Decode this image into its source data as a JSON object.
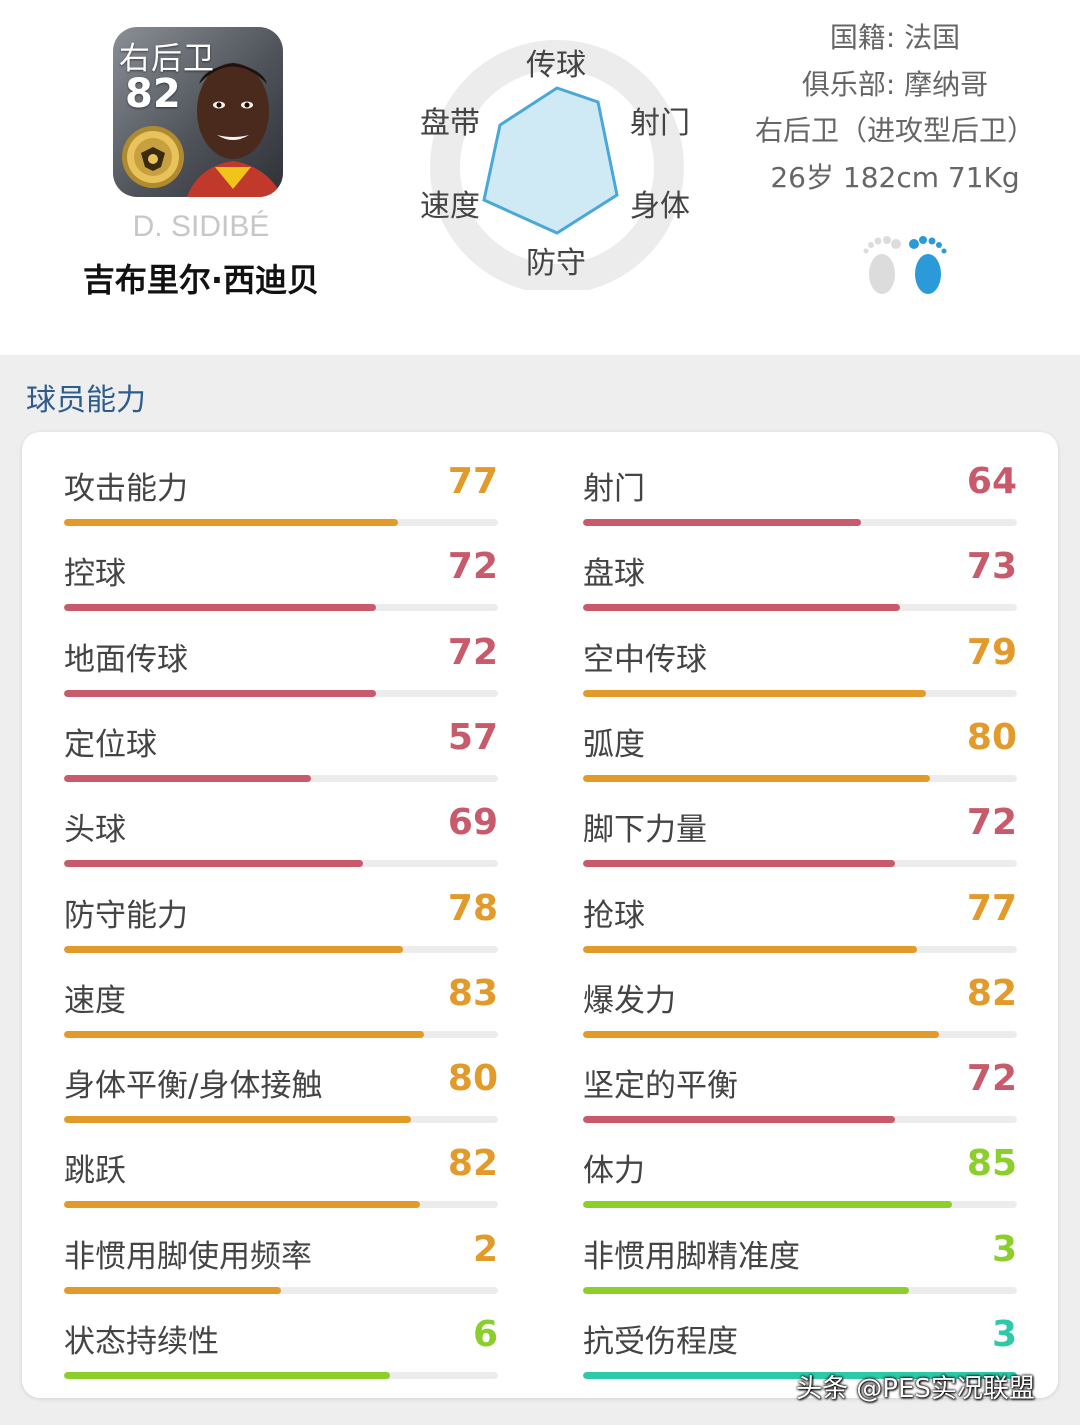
{
  "player": {
    "position_badge": "右后卫",
    "rating": "82",
    "name_en": "D. SIDIBÉ",
    "name_cn": "吉布里尔·西迪贝"
  },
  "radar": {
    "labels": {
      "pass": "传球",
      "shoot": "射门",
      "body": "身体",
      "defend": "防守",
      "speed": "速度",
      "dribble": "盘带"
    }
  },
  "info": {
    "nationality": "国籍: 法国",
    "club": "俱乐部: 摩纳哥",
    "role": "右后卫（进攻型后卫）",
    "physical": "26岁 182cm 71Kg"
  },
  "section_title": "球员能力",
  "colors": {
    "orange": "#e29a2b",
    "red": "#c85a6b",
    "green": "#8ccf2c",
    "teal": "#2ec9a8",
    "title_blue": "#2e5d8c"
  },
  "stats_left": [
    {
      "label": "攻击能力",
      "value": "77",
      "fill": 0.77,
      "color": "orange"
    },
    {
      "label": "控球",
      "value": "72",
      "fill": 0.72,
      "color": "red"
    },
    {
      "label": "地面传球",
      "value": "72",
      "fill": 0.72,
      "color": "red"
    },
    {
      "label": "定位球",
      "value": "57",
      "fill": 0.57,
      "color": "red"
    },
    {
      "label": "头球",
      "value": "69",
      "fill": 0.69,
      "color": "red"
    },
    {
      "label": "防守能力",
      "value": "78",
      "fill": 0.78,
      "color": "orange"
    },
    {
      "label": "速度",
      "value": "83",
      "fill": 0.83,
      "color": "orange"
    },
    {
      "label": "身体平衡/身体接触",
      "value": "80",
      "fill": 0.8,
      "color": "orange"
    },
    {
      "label": "跳跃",
      "value": "82",
      "fill": 0.82,
      "color": "orange"
    },
    {
      "label": "非惯用脚使用频率",
      "value": "2",
      "fill": 0.5,
      "color": "orange"
    },
    {
      "label": "状态持续性",
      "value": "6",
      "fill": 0.75,
      "color": "green"
    }
  ],
  "stats_right": [
    {
      "label": "射门",
      "value": "64",
      "fill": 0.64,
      "color": "red"
    },
    {
      "label": "盘球",
      "value": "73",
      "fill": 0.73,
      "color": "red"
    },
    {
      "label": "空中传球",
      "value": "79",
      "fill": 0.79,
      "color": "orange"
    },
    {
      "label": "弧度",
      "value": "80",
      "fill": 0.8,
      "color": "orange"
    },
    {
      "label": "脚下力量",
      "value": "72",
      "fill": 0.72,
      "color": "red"
    },
    {
      "label": "抢球",
      "value": "77",
      "fill": 0.77,
      "color": "orange"
    },
    {
      "label": "爆发力",
      "value": "82",
      "fill": 0.82,
      "color": "orange"
    },
    {
      "label": "坚定的平衡",
      "value": "72",
      "fill": 0.72,
      "color": "red"
    },
    {
      "label": "体力",
      "value": "85",
      "fill": 0.85,
      "color": "green"
    },
    {
      "label": "非惯用脚精准度",
      "value": "3",
      "fill": 0.75,
      "color": "green"
    },
    {
      "label": "抗受伤程度",
      "value": "3",
      "fill": 1.0,
      "color": "teal"
    }
  ],
  "watermark": "头条 @PES实况联盟"
}
